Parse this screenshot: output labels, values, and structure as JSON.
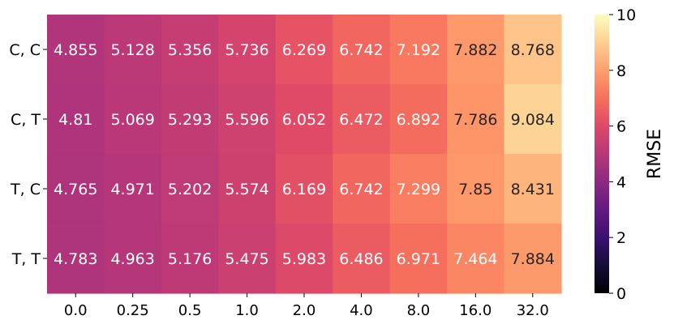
{
  "chart_data": {
    "type": "heatmap",
    "title": "",
    "xlabel": "",
    "ylabel": "",
    "x_categories": [
      "0.0",
      "0.25",
      "0.5",
      "1.0",
      "2.0",
      "4.0",
      "8.0",
      "16.0",
      "32.0"
    ],
    "y_categories": [
      "C, C",
      "C, T",
      "T, C",
      "T, T"
    ],
    "values": [
      [
        4.855,
        5.128,
        5.356,
        5.736,
        6.269,
        6.742,
        7.192,
        7.882,
        8.768
      ],
      [
        4.81,
        5.069,
        5.293,
        5.596,
        6.052,
        6.472,
        6.892,
        7.786,
        9.084
      ],
      [
        4.765,
        4.971,
        5.202,
        5.574,
        6.169,
        6.742,
        7.299,
        7.85,
        8.431
      ],
      [
        4.783,
        4.963,
        5.176,
        5.475,
        5.983,
        6.486,
        6.971,
        7.464,
        7.884
      ]
    ],
    "value_labels": [
      [
        "4.855",
        "5.128",
        "5.356",
        "5.736",
        "6.269",
        "6.742",
        "7.192",
        "7.882",
        "8.768"
      ],
      [
        "4.81",
        "5.069",
        "5.293",
        "5.596",
        "6.052",
        "6.472",
        "6.892",
        "7.786",
        "9.084"
      ],
      [
        "4.765",
        "4.971",
        "5.202",
        "5.574",
        "6.169",
        "6.742",
        "7.299",
        "7.85",
        "8.431"
      ],
      [
        "4.783",
        "4.963",
        "5.176",
        "5.475",
        "5.983",
        "6.486",
        "6.971",
        "7.464",
        "7.884"
      ]
    ],
    "colorbar": {
      "label": "RMSE",
      "range": [
        0,
        10
      ],
      "ticks": [
        "0",
        "2",
        "4",
        "6",
        "8",
        "10"
      ],
      "colormap": "magma"
    },
    "grid": false,
    "legend": "none"
  }
}
